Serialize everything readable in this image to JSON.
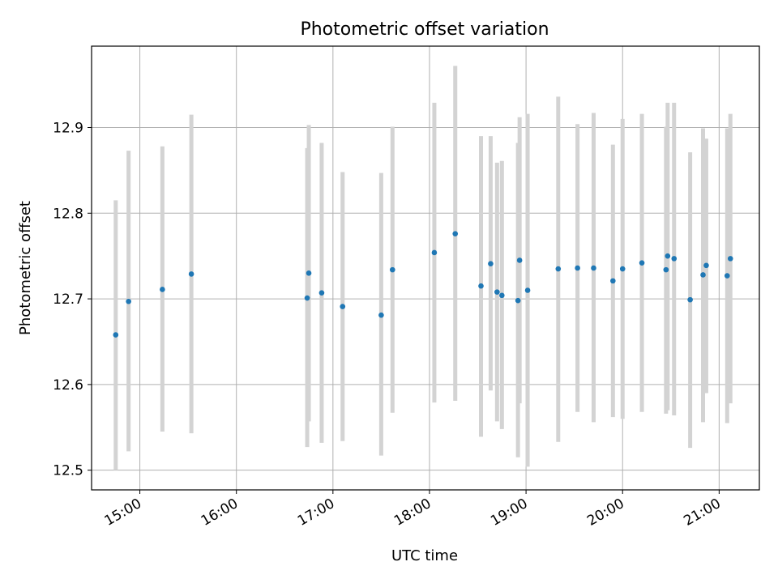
{
  "chart_data": {
    "type": "scatter",
    "title": "Photometric offset variation",
    "xlabel": "UTC time",
    "ylabel": "Photometric offset",
    "xlim": [
      "14:30",
      "21:25"
    ],
    "ylim": [
      12.477,
      12.995
    ],
    "x_ticks": [
      "15:00",
      "16:00",
      "17:00",
      "18:00",
      "19:00",
      "20:00",
      "21:00"
    ],
    "y_ticks": [
      "12.5",
      "12.6",
      "12.7",
      "12.8",
      "12.9"
    ],
    "grid": true,
    "marker_color": "#1f77b4",
    "errorbar_color": "#d3d3d3",
    "points": [
      {
        "x": "14:45",
        "y": 12.658,
        "ylow": 12.5,
        "yhigh": 12.815
      },
      {
        "x": "14:53",
        "y": 12.697,
        "ylow": 12.522,
        "yhigh": 12.873
      },
      {
        "x": "15:14",
        "y": 12.711,
        "ylow": 12.545,
        "yhigh": 12.878
      },
      {
        "x": "15:32",
        "y": 12.729,
        "ylow": 12.543,
        "yhigh": 12.915
      },
      {
        "x": "16:44",
        "y": 12.701,
        "ylow": 12.527,
        "yhigh": 12.876
      },
      {
        "x": "16:45",
        "y": 12.73,
        "ylow": 12.557,
        "yhigh": 12.903
      },
      {
        "x": "16:53",
        "y": 12.707,
        "ylow": 12.532,
        "yhigh": 12.882
      },
      {
        "x": "17:06",
        "y": 12.691,
        "ylow": 12.534,
        "yhigh": 12.848
      },
      {
        "x": "17:30",
        "y": 12.681,
        "ylow": 12.517,
        "yhigh": 12.847
      },
      {
        "x": "17:37",
        "y": 12.734,
        "ylow": 12.567,
        "yhigh": 12.901
      },
      {
        "x": "18:03",
        "y": 12.754,
        "ylow": 12.579,
        "yhigh": 12.929
      },
      {
        "x": "18:16",
        "y": 12.776,
        "ylow": 12.581,
        "yhigh": 12.972
      },
      {
        "x": "18:32",
        "y": 12.715,
        "ylow": 12.539,
        "yhigh": 12.89
      },
      {
        "x": "18:38",
        "y": 12.741,
        "ylow": 12.593,
        "yhigh": 12.89
      },
      {
        "x": "18:42",
        "y": 12.708,
        "ylow": 12.557,
        "yhigh": 12.859
      },
      {
        "x": "18:45",
        "y": 12.704,
        "ylow": 12.548,
        "yhigh": 12.861
      },
      {
        "x": "18:55",
        "y": 12.698,
        "ylow": 12.515,
        "yhigh": 12.882
      },
      {
        "x": "18:56",
        "y": 12.745,
        "ylow": 12.578,
        "yhigh": 12.912
      },
      {
        "x": "19:01",
        "y": 12.71,
        "ylow": 12.504,
        "yhigh": 12.916
      },
      {
        "x": "19:20",
        "y": 12.735,
        "ylow": 12.533,
        "yhigh": 12.936
      },
      {
        "x": "19:32",
        "y": 12.736,
        "ylow": 12.568,
        "yhigh": 12.904
      },
      {
        "x": "19:42",
        "y": 12.736,
        "ylow": 12.556,
        "yhigh": 12.917
      },
      {
        "x": "19:54",
        "y": 12.721,
        "ylow": 12.562,
        "yhigh": 12.88
      },
      {
        "x": "20:00",
        "y": 12.735,
        "ylow": 12.56,
        "yhigh": 12.91
      },
      {
        "x": "20:12",
        "y": 12.742,
        "ylow": 12.568,
        "yhigh": 12.916
      },
      {
        "x": "20:27",
        "y": 12.734,
        "ylow": 12.566,
        "yhigh": 12.901
      },
      {
        "x": "20:28",
        "y": 12.75,
        "ylow": 12.57,
        "yhigh": 12.929
      },
      {
        "x": "20:32",
        "y": 12.747,
        "ylow": 12.564,
        "yhigh": 12.929
      },
      {
        "x": "20:42",
        "y": 12.699,
        "ylow": 12.526,
        "yhigh": 12.871
      },
      {
        "x": "20:50",
        "y": 12.728,
        "ylow": 12.556,
        "yhigh": 12.899
      },
      {
        "x": "20:52",
        "y": 12.739,
        "ylow": 12.59,
        "yhigh": 12.887
      },
      {
        "x": "21:05",
        "y": 12.727,
        "ylow": 12.555,
        "yhigh": 12.899
      },
      {
        "x": "21:07",
        "y": 12.747,
        "ylow": 12.578,
        "yhigh": 12.916
      }
    ]
  }
}
